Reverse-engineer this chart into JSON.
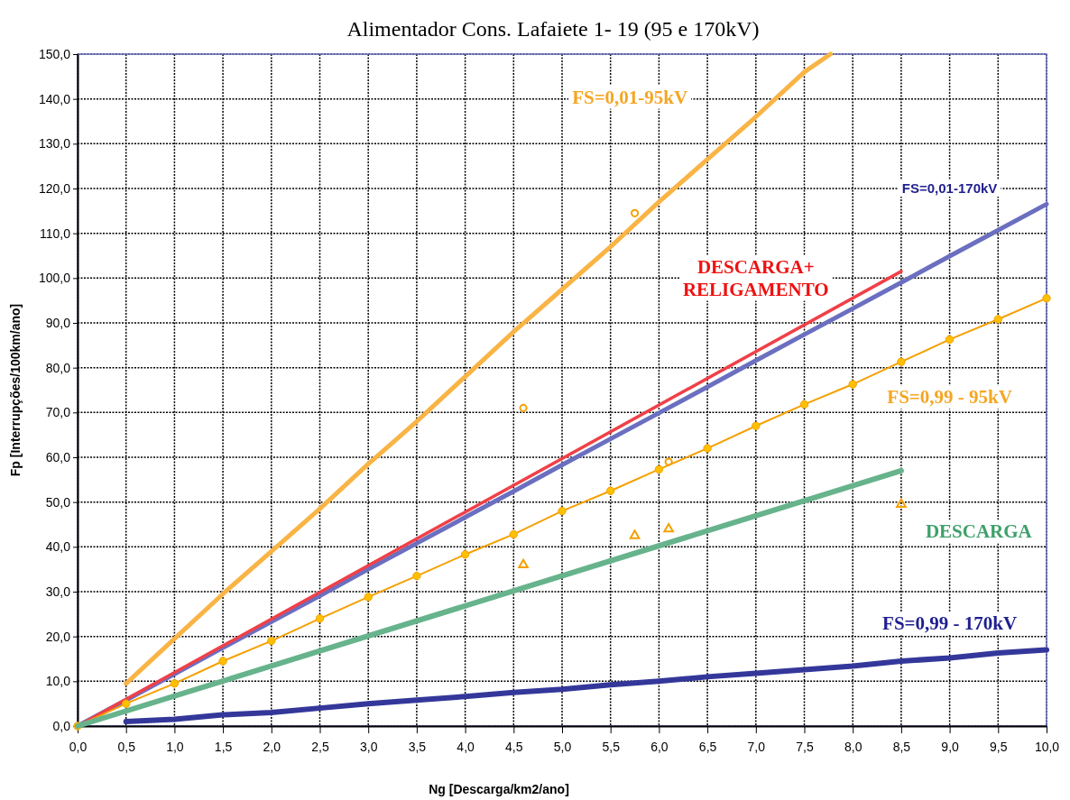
{
  "chart_data": {
    "type": "line",
    "title": "Alimentador Cons. Lafaiete 1- 19 (95 e 170kV)",
    "xlabel": "Ng [Descarga/km2/ano]",
    "ylabel": "Fp [Interrupções/100km/ano]",
    "xlim": [
      0,
      10
    ],
    "ylim": [
      0,
      150
    ],
    "xticks": [
      {
        "value": 0,
        "label": "0,0"
      },
      {
        "value": 0.5,
        "label": "0,5"
      },
      {
        "value": 1,
        "label": "1,0"
      },
      {
        "value": 1.5,
        "label": "1,5"
      },
      {
        "value": 2,
        "label": "2,0"
      },
      {
        "value": 2.5,
        "label": "2,5"
      },
      {
        "value": 3,
        "label": "3,0"
      },
      {
        "value": 3.5,
        "label": "3,5"
      },
      {
        "value": 4,
        "label": "4,0"
      },
      {
        "value": 4.5,
        "label": "4,5"
      },
      {
        "value": 5,
        "label": "5,0"
      },
      {
        "value": 5.5,
        "label": "5,5"
      },
      {
        "value": 6,
        "label": "6,0"
      },
      {
        "value": 6.5,
        "label": "6,5"
      },
      {
        "value": 7,
        "label": "7,0"
      },
      {
        "value": 7.5,
        "label": "7,5"
      },
      {
        "value": 8,
        "label": "8,0"
      },
      {
        "value": 8.5,
        "label": "8,5"
      },
      {
        "value": 9,
        "label": "9,0"
      },
      {
        "value": 9.5,
        "label": "9,5"
      },
      {
        "value": 10,
        "label": "10,0"
      }
    ],
    "yticks": [
      {
        "value": 0,
        "label": "0,0"
      },
      {
        "value": 10,
        "label": "10,0"
      },
      {
        "value": 20,
        "label": "20,0"
      },
      {
        "value": 30,
        "label": "30,0"
      },
      {
        "value": 40,
        "label": "40,0"
      },
      {
        "value": 50,
        "label": "50,0"
      },
      {
        "value": 60,
        "label": "60,0"
      },
      {
        "value": 70,
        "label": "70,0"
      },
      {
        "value": 80,
        "label": "80,0"
      },
      {
        "value": 90,
        "label": "90,0"
      },
      {
        "value": 100,
        "label": "100,0"
      },
      {
        "value": 110,
        "label": "110,0"
      },
      {
        "value": 120,
        "label": "120,0"
      },
      {
        "value": 130,
        "label": "130,0"
      },
      {
        "value": 140,
        "label": "140,0"
      },
      {
        "value": 150,
        "label": "150,0"
      }
    ],
    "grid": true,
    "line_style": "solid",
    "series": [
      {
        "name": "FS=0,01-95kV",
        "color": "#f9b445",
        "x": [
          0.5,
          1,
          1.5,
          2,
          2.5,
          3,
          3.5,
          4,
          4.5,
          5,
          5.5,
          6,
          6.5,
          7,
          7.5,
          7.77
        ],
        "values": [
          9.5,
          19.5,
          29.5,
          39,
          48.5,
          58.5,
          68,
          78,
          88,
          97.5,
          107,
          117,
          126.5,
          136,
          146,
          150
        ]
      },
      {
        "name": "FS=0,01-170kV",
        "color": "#6a6fc0",
        "x": [
          0,
          0.5,
          1,
          1.5,
          2,
          2.5,
          3,
          3.5,
          4,
          4.5,
          5,
          5.5,
          6,
          6.5,
          7,
          7.5,
          8,
          8.5,
          9,
          9.5,
          10
        ],
        "values": [
          0,
          5.8,
          11.6,
          17.5,
          23.3,
          29.1,
          35,
          40.8,
          46.6,
          52.4,
          58.3,
          64.1,
          69.9,
          75.7,
          81.6,
          87.4,
          93.2,
          99,
          104.9,
          110.7,
          116.5
        ]
      },
      {
        "name": "DESCARGA+ RELIGAMENTO",
        "color": "#f04048",
        "x": [
          0,
          8.5
        ],
        "values": [
          0,
          101.5
        ]
      },
      {
        "name": "FS=0,99 - 95kV",
        "color": "#f5a000",
        "marker": "circle",
        "x": [
          0,
          0.5,
          1,
          1.5,
          2,
          2.5,
          3,
          3.5,
          4,
          4.5,
          5,
          5.5,
          6,
          6.5,
          7,
          7.5,
          8,
          8.5,
          9,
          9.5,
          10
        ],
        "values": [
          0,
          5,
          9.5,
          14.5,
          19,
          24,
          28.8,
          33.5,
          38.3,
          42.8,
          48,
          52.5,
          57.3,
          62,
          67,
          71.8,
          76.3,
          81.3,
          86.3,
          90.8,
          95.5
        ]
      },
      {
        "name": "DESCARGA",
        "color": "#66b38c",
        "x": [
          0,
          8.5
        ],
        "values": [
          0,
          57
        ]
      },
      {
        "name": "FS=0,99 - 170kV",
        "color": "#34379a",
        "x": [
          0.5,
          1,
          1.5,
          2,
          2.5,
          3,
          3.5,
          4,
          4.5,
          5,
          5.5,
          6,
          6.5,
          7,
          7.5,
          8,
          8.5,
          9,
          9.5,
          10
        ],
        "values": [
          1,
          1.5,
          2.5,
          3,
          4,
          5,
          5.8,
          6.6,
          7.5,
          8.2,
          9.2,
          10,
          11,
          11.8,
          12.6,
          13.4,
          14.5,
          15.2,
          16.3,
          17
        ]
      },
      {
        "type": "scatter",
        "marker": "circle",
        "color": "#f5a000",
        "x": [
          5.75,
          4.6,
          6.1
        ],
        "values": [
          114.5,
          71,
          59
        ]
      },
      {
        "type": "scatter",
        "marker": "triangle",
        "color": "#f5a000",
        "x": [
          4.6,
          5.75,
          6.1,
          8.5
        ],
        "values": [
          36,
          42.5,
          44,
          49.5
        ]
      }
    ]
  }
}
